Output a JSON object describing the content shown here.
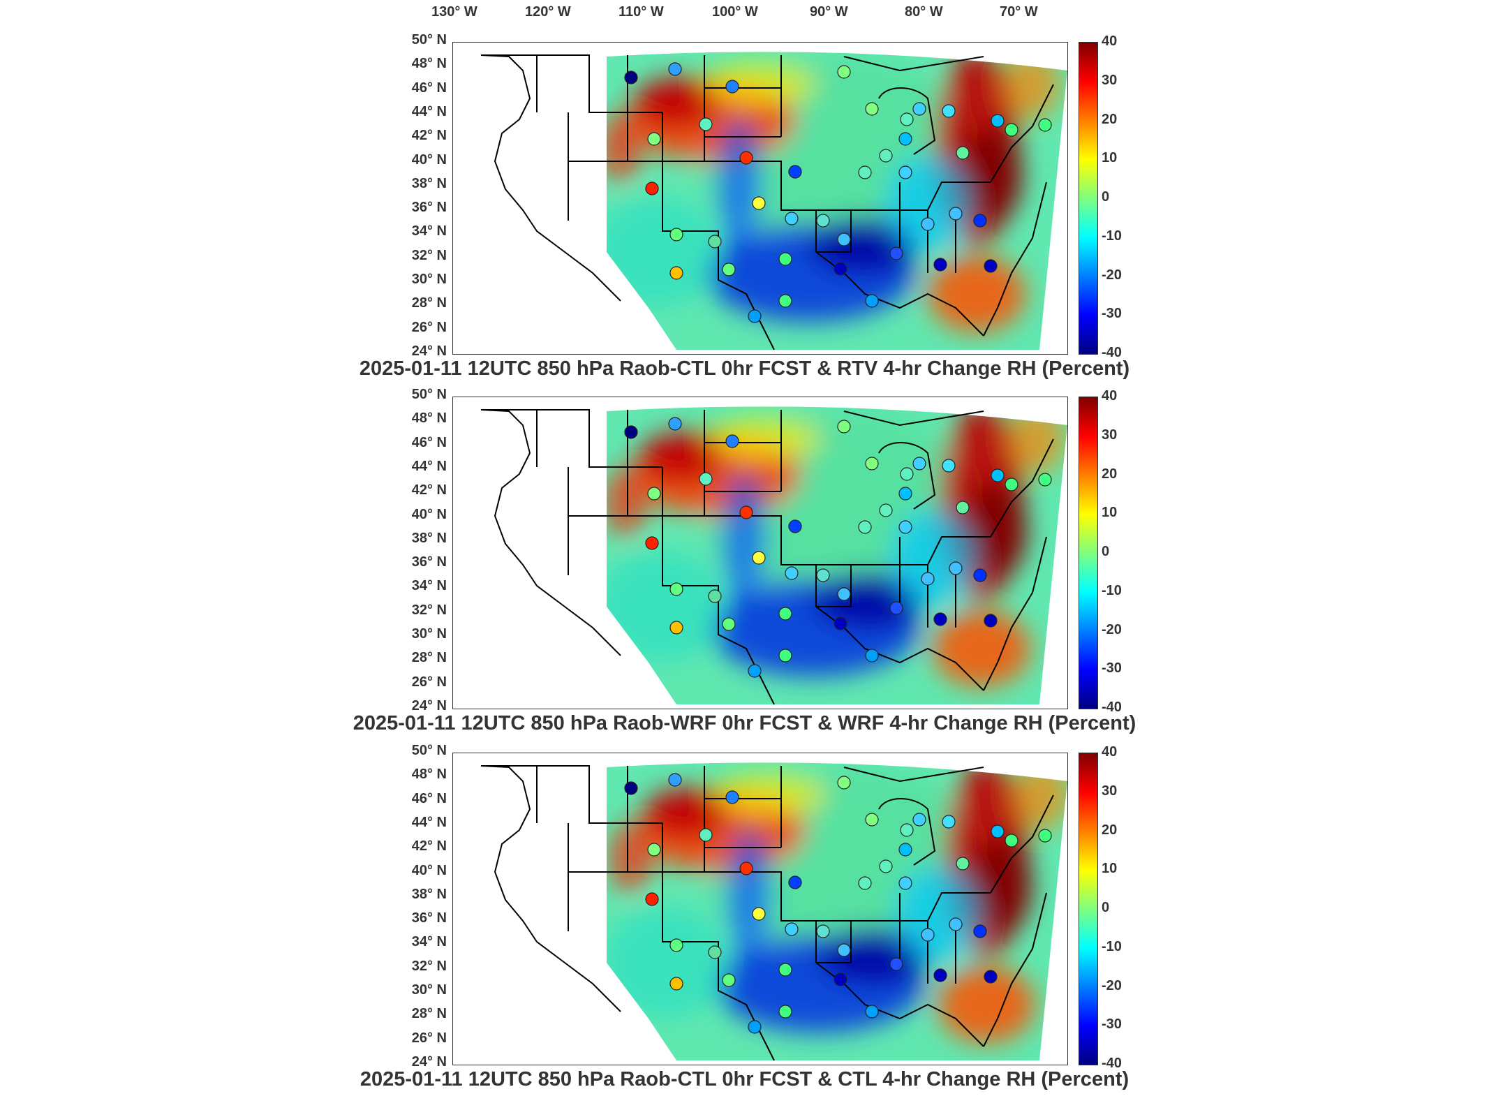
{
  "lon_labels": [
    "130° W",
    "120° W",
    "110° W",
    "100° W",
    "90° W",
    "80° W",
    "70° W"
  ],
  "lat_labels": [
    "50° N",
    "48° N",
    "46° N",
    "44° N",
    "42° N",
    "40° N",
    "38° N",
    "36° N",
    "34° N",
    "32° N",
    "30° N",
    "28° N",
    "26° N",
    "24° N"
  ],
  "colorbar_ticks": [
    "40",
    "30",
    "20",
    "10",
    "0",
    "-10",
    "-20",
    "-30",
    "-40"
  ],
  "colors": {
    "cmap_low": "#00007f",
    "cmap_mid": "#7fff7f",
    "cmap_high": "#7f0000"
  },
  "panels": [
    {
      "title": "2025-01-11 12UTC 850 hPa Raob-CTL 0hr FCST & RTV 4-hr Change RH (Percent)"
    },
    {
      "title": "2025-01-11 12UTC 850 hPa Raob-WRF 0hr FCST & WRF 4-hr Change RH (Percent)"
    },
    {
      "title": "2025-01-11 12UTC 850 hPa Raob-CTL 0hr FCST & CTL 4-hr Change RH (Percent)"
    }
  ]
}
